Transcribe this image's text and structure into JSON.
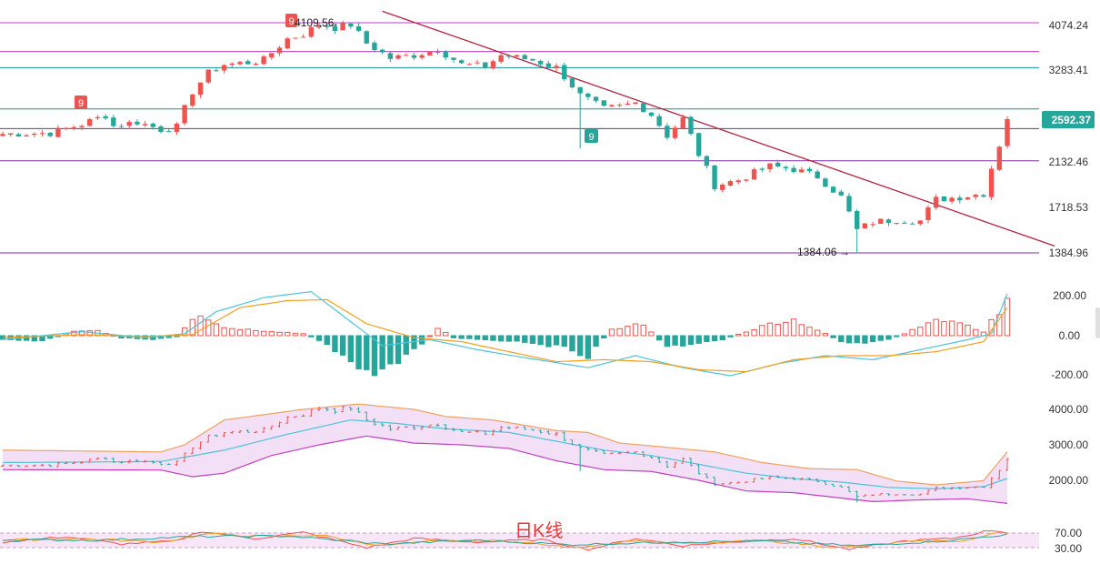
{
  "title": "日K线",
  "colors": {
    "up": "#ef5350",
    "down": "#26a69a",
    "trendline": "#b2233e",
    "hline_magenta": "#c23cc8",
    "hline_purple": "#7b2d9b",
    "hline_teal": "#1e8f9a",
    "macd_line": "#4fc3d9",
    "signal_line": "#f0a020",
    "boll_upper": "#f0a060",
    "boll_mid": "#4fc3d9",
    "boll_lower": "#c040c0",
    "boll_fill": "#f3e0f6",
    "price_tag_bg": "#26a69a",
    "grid": "#e6e6e6",
    "axis_text": "#333333"
  },
  "price_axis": {
    "ticks": [
      "4074.24",
      "3283.41",
      "2132.46",
      "1718.53",
      "1384.96"
    ],
    "current_price": "2592.37"
  },
  "annotations": {
    "high_label": "4109.56",
    "low_label": "1384.06",
    "td_marker_1": "9",
    "td_marker_2": "9",
    "td_marker_3": "9"
  },
  "macd_axis": {
    "ticks": [
      "200.00",
      "0.00",
      "-200.00"
    ]
  },
  "boll_axis": {
    "ticks": [
      "4000.00",
      "3000.00",
      "2000.00"
    ]
  },
  "rsi_axis": {
    "ticks": [
      "70.00",
      "30.00"
    ]
  },
  "chart_data": [
    {
      "type": "candlestick",
      "panel": "price",
      "num_candles": 128,
      "close_path": [
        {
          "i": 0,
          "v": 2420
        },
        {
          "i": 6,
          "v": 2430
        },
        {
          "i": 10,
          "v": 2530
        },
        {
          "i": 13,
          "v": 2640
        },
        {
          "i": 14,
          "v": 2510
        },
        {
          "i": 17,
          "v": 2560
        },
        {
          "i": 20,
          "v": 2470
        },
        {
          "i": 22,
          "v": 2500
        },
        {
          "i": 24,
          "v": 2950
        },
        {
          "i": 26,
          "v": 3220
        },
        {
          "i": 28,
          "v": 3350
        },
        {
          "i": 31,
          "v": 3380
        },
        {
          "i": 33,
          "v": 3420
        },
        {
          "i": 36,
          "v": 3780
        },
        {
          "i": 38,
          "v": 3860
        },
        {
          "i": 40,
          "v": 4050
        },
        {
          "i": 42,
          "v": 3980
        },
        {
          "i": 44,
          "v": 4040
        },
        {
          "i": 46,
          "v": 3700
        },
        {
          "i": 49,
          "v": 3450
        },
        {
          "i": 52,
          "v": 3500
        },
        {
          "i": 55,
          "v": 3600
        },
        {
          "i": 58,
          "v": 3350
        },
        {
          "i": 61,
          "v": 3320
        },
        {
          "i": 63,
          "v": 3500
        },
        {
          "i": 67,
          "v": 3420
        },
        {
          "i": 70,
          "v": 3300
        },
        {
          "i": 73,
          "v": 2900
        },
        {
          "i": 76,
          "v": 2720
        },
        {
          "i": 78,
          "v": 2750
        },
        {
          "i": 80,
          "v": 2800
        },
        {
          "i": 82,
          "v": 2650
        },
        {
          "i": 84,
          "v": 2400
        },
        {
          "i": 86,
          "v": 2600
        },
        {
          "i": 88,
          "v": 2200
        },
        {
          "i": 90,
          "v": 1900
        },
        {
          "i": 93,
          "v": 1950
        },
        {
          "i": 97,
          "v": 2080
        },
        {
          "i": 100,
          "v": 2050
        },
        {
          "i": 103,
          "v": 1980
        },
        {
          "i": 106,
          "v": 1800
        },
        {
          "i": 108,
          "v": 1540
        },
        {
          "i": 110,
          "v": 1600
        },
        {
          "i": 113,
          "v": 1620
        },
        {
          "i": 116,
          "v": 1610
        },
        {
          "i": 118,
          "v": 1780
        },
        {
          "i": 121,
          "v": 1800
        },
        {
          "i": 124,
          "v": 1830
        },
        {
          "i": 126,
          "v": 2300
        },
        {
          "i": 127,
          "v": 2592.37
        }
      ],
      "high": 4109.56,
      "low": 1384.06,
      "trendline": {
        "from_index": 48,
        "from_value": 4300,
        "to_index": 133,
        "to_value": 1430
      },
      "horizontal_levels": [
        {
          "value": 4074.24,
          "color_key": "hline_magenta"
        },
        {
          "value": 3560,
          "color_key": "hline_magenta"
        },
        {
          "value": 3300,
          "color_key": "hline_teal"
        },
        {
          "value": 2720,
          "color_key": "hline_teal"
        },
        {
          "value": 2480,
          "color_key": "hline_purple"
        },
        {
          "value": 2132.46,
          "color_key": "hline_purple"
        },
        {
          "value": 1384.96,
          "color_key": "hline_purple"
        }
      ]
    },
    {
      "type": "bar",
      "panel": "macd",
      "histogram_path": [
        {
          "i": 0,
          "v": -20
        },
        {
          "i": 5,
          "v": -25
        },
        {
          "i": 9,
          "v": 20
        },
        {
          "i": 12,
          "v": 25
        },
        {
          "i": 15,
          "v": -10
        },
        {
          "i": 19,
          "v": -20
        },
        {
          "i": 22,
          "v": -5
        },
        {
          "i": 24,
          "v": 90
        },
        {
          "i": 25,
          "v": 110
        },
        {
          "i": 28,
          "v": 40
        },
        {
          "i": 33,
          "v": 25
        },
        {
          "i": 38,
          "v": 10
        },
        {
          "i": 41,
          "v": -40
        },
        {
          "i": 46,
          "v": -190
        },
        {
          "i": 50,
          "v": -140
        },
        {
          "i": 53,
          "v": -40
        },
        {
          "i": 55,
          "v": 40
        },
        {
          "i": 57,
          "v": -10
        },
        {
          "i": 61,
          "v": -20
        },
        {
          "i": 66,
          "v": -30
        },
        {
          "i": 71,
          "v": -60
        },
        {
          "i": 74,
          "v": -100
        },
        {
          "i": 77,
          "v": 30
        },
        {
          "i": 81,
          "v": 60
        },
        {
          "i": 84,
          "v": -60
        },
        {
          "i": 87,
          "v": -40
        },
        {
          "i": 91,
          "v": -20
        },
        {
          "i": 97,
          "v": 60
        },
        {
          "i": 100,
          "v": 80
        },
        {
          "i": 104,
          "v": 10
        },
        {
          "i": 106,
          "v": -30
        },
        {
          "i": 109,
          "v": -40
        },
        {
          "i": 112,
          "v": -20
        },
        {
          "i": 114,
          "v": 10
        },
        {
          "i": 117,
          "v": 70
        },
        {
          "i": 120,
          "v": 75
        },
        {
          "i": 124,
          "v": 20
        },
        {
          "i": 126,
          "v": 120
        },
        {
          "i": 127,
          "v": 170
        }
      ],
      "macd_path": [
        {
          "i": 0,
          "v": -20
        },
        {
          "i": 10,
          "v": 20
        },
        {
          "i": 18,
          "v": -10
        },
        {
          "i": 23,
          "v": 10
        },
        {
          "i": 27,
          "v": 120
        },
        {
          "i": 33,
          "v": 190
        },
        {
          "i": 39,
          "v": 220
        },
        {
          "i": 43,
          "v": 100
        },
        {
          "i": 48,
          "v": -50
        },
        {
          "i": 54,
          "v": -20
        },
        {
          "i": 60,
          "v": -70
        },
        {
          "i": 66,
          "v": -110
        },
        {
          "i": 74,
          "v": -160
        },
        {
          "i": 80,
          "v": -100
        },
        {
          "i": 86,
          "v": -160
        },
        {
          "i": 92,
          "v": -200
        },
        {
          "i": 98,
          "v": -140
        },
        {
          "i": 104,
          "v": -100
        },
        {
          "i": 110,
          "v": -120
        },
        {
          "i": 116,
          "v": -70
        },
        {
          "i": 122,
          "v": -20
        },
        {
          "i": 125,
          "v": 10
        },
        {
          "i": 127,
          "v": 210
        }
      ],
      "signal_path": [
        {
          "i": 0,
          "v": -10
        },
        {
          "i": 10,
          "v": 5
        },
        {
          "i": 18,
          "v": -5
        },
        {
          "i": 24,
          "v": 5
        },
        {
          "i": 30,
          "v": 140
        },
        {
          "i": 36,
          "v": 175
        },
        {
          "i": 41,
          "v": 180
        },
        {
          "i": 46,
          "v": 60
        },
        {
          "i": 52,
          "v": -10
        },
        {
          "i": 58,
          "v": -30
        },
        {
          "i": 64,
          "v": -80
        },
        {
          "i": 70,
          "v": -130
        },
        {
          "i": 76,
          "v": -120
        },
        {
          "i": 82,
          "v": -130
        },
        {
          "i": 88,
          "v": -170
        },
        {
          "i": 94,
          "v": -180
        },
        {
          "i": 100,
          "v": -120
        },
        {
          "i": 106,
          "v": -100
        },
        {
          "i": 112,
          "v": -100
        },
        {
          "i": 118,
          "v": -80
        },
        {
          "i": 124,
          "v": -30
        },
        {
          "i": 127,
          "v": 140
        }
      ],
      "ylim": [
        -250,
        250
      ]
    },
    {
      "type": "line",
      "panel": "bollinger",
      "upper_path": [
        {
          "i": 0,
          "v": 2850
        },
        {
          "i": 20,
          "v": 2800
        },
        {
          "i": 23,
          "v": 3000
        },
        {
          "i": 28,
          "v": 3700
        },
        {
          "i": 33,
          "v": 3850
        },
        {
          "i": 38,
          "v": 4000
        },
        {
          "i": 45,
          "v": 4150
        },
        {
          "i": 52,
          "v": 4000
        },
        {
          "i": 56,
          "v": 3800
        },
        {
          "i": 62,
          "v": 3700
        },
        {
          "i": 66,
          "v": 3550
        },
        {
          "i": 70,
          "v": 3400
        },
        {
          "i": 74,
          "v": 3350
        },
        {
          "i": 78,
          "v": 3050
        },
        {
          "i": 83,
          "v": 2950
        },
        {
          "i": 90,
          "v": 2800
        },
        {
          "i": 96,
          "v": 2500
        },
        {
          "i": 102,
          "v": 2330
        },
        {
          "i": 108,
          "v": 2300
        },
        {
          "i": 113,
          "v": 1980
        },
        {
          "i": 118,
          "v": 1870
        },
        {
          "i": 124,
          "v": 1990
        },
        {
          "i": 127,
          "v": 2800
        }
      ],
      "mid_path": [
        {
          "i": 0,
          "v": 2500
        },
        {
          "i": 20,
          "v": 2530
        },
        {
          "i": 28,
          "v": 2850
        },
        {
          "i": 36,
          "v": 3300
        },
        {
          "i": 44,
          "v": 3700
        },
        {
          "i": 50,
          "v": 3600
        },
        {
          "i": 56,
          "v": 3450
        },
        {
          "i": 64,
          "v": 3350
        },
        {
          "i": 70,
          "v": 3100
        },
        {
          "i": 76,
          "v": 2850
        },
        {
          "i": 82,
          "v": 2700
        },
        {
          "i": 88,
          "v": 2450
        },
        {
          "i": 94,
          "v": 2200
        },
        {
          "i": 100,
          "v": 2050
        },
        {
          "i": 106,
          "v": 1950
        },
        {
          "i": 112,
          "v": 1800
        },
        {
          "i": 118,
          "v": 1760
        },
        {
          "i": 124,
          "v": 1820
        },
        {
          "i": 127,
          "v": 2050
        }
      ],
      "lower_path": [
        {
          "i": 0,
          "v": 2300
        },
        {
          "i": 20,
          "v": 2290
        },
        {
          "i": 24,
          "v": 2100
        },
        {
          "i": 28,
          "v": 2200
        },
        {
          "i": 34,
          "v": 2700
        },
        {
          "i": 40,
          "v": 3000
        },
        {
          "i": 46,
          "v": 3250
        },
        {
          "i": 52,
          "v": 3050
        },
        {
          "i": 58,
          "v": 3000
        },
        {
          "i": 64,
          "v": 2900
        },
        {
          "i": 70,
          "v": 2550
        },
        {
          "i": 76,
          "v": 2300
        },
        {
          "i": 82,
          "v": 2250
        },
        {
          "i": 88,
          "v": 2000
        },
        {
          "i": 94,
          "v": 1700
        },
        {
          "i": 100,
          "v": 1650
        },
        {
          "i": 106,
          "v": 1500
        },
        {
          "i": 110,
          "v": 1400
        },
        {
          "i": 116,
          "v": 1450
        },
        {
          "i": 122,
          "v": 1480
        },
        {
          "i": 127,
          "v": 1350
        }
      ],
      "ylim": [
        1200,
        4400
      ]
    },
    {
      "type": "line",
      "panel": "rsi",
      "series": [
        {
          "color_key": "up",
          "path": [
            {
              "i": 0,
              "v": 45
            },
            {
              "i": 8,
              "v": 60
            },
            {
              "i": 15,
              "v": 40
            },
            {
              "i": 22,
              "v": 48
            },
            {
              "i": 25,
              "v": 75
            },
            {
              "i": 32,
              "v": 55
            },
            {
              "i": 38,
              "v": 72
            },
            {
              "i": 46,
              "v": 30
            },
            {
              "i": 52,
              "v": 55
            },
            {
              "i": 60,
              "v": 45
            },
            {
              "i": 68,
              "v": 52
            },
            {
              "i": 74,
              "v": 25
            },
            {
              "i": 80,
              "v": 55
            },
            {
              "i": 86,
              "v": 35
            },
            {
              "i": 92,
              "v": 45
            },
            {
              "i": 100,
              "v": 55
            },
            {
              "i": 107,
              "v": 25
            },
            {
              "i": 114,
              "v": 48
            },
            {
              "i": 120,
              "v": 55
            },
            {
              "i": 125,
              "v": 78
            },
            {
              "i": 127,
              "v": 72
            }
          ]
        },
        {
          "color_key": "signal_line",
          "path": [
            {
              "i": 0,
              "v": 50
            },
            {
              "i": 10,
              "v": 55
            },
            {
              "i": 20,
              "v": 45
            },
            {
              "i": 26,
              "v": 68
            },
            {
              "i": 34,
              "v": 60
            },
            {
              "i": 40,
              "v": 65
            },
            {
              "i": 48,
              "v": 35
            },
            {
              "i": 56,
              "v": 50
            },
            {
              "i": 64,
              "v": 48
            },
            {
              "i": 72,
              "v": 30
            },
            {
              "i": 80,
              "v": 50
            },
            {
              "i": 88,
              "v": 40
            },
            {
              "i": 96,
              "v": 50
            },
            {
              "i": 106,
              "v": 30
            },
            {
              "i": 114,
              "v": 45
            },
            {
              "i": 122,
              "v": 50
            },
            {
              "i": 126,
              "v": 72
            },
            {
              "i": 127,
              "v": 70
            }
          ]
        },
        {
          "color_key": "down",
          "path": [
            {
              "i": 0,
              "v": 52
            },
            {
              "i": 12,
              "v": 50
            },
            {
              "i": 24,
              "v": 60
            },
            {
              "i": 36,
              "v": 62
            },
            {
              "i": 48,
              "v": 40
            },
            {
              "i": 60,
              "v": 50
            },
            {
              "i": 72,
              "v": 38
            },
            {
              "i": 84,
              "v": 45
            },
            {
              "i": 96,
              "v": 48
            },
            {
              "i": 108,
              "v": 35
            },
            {
              "i": 120,
              "v": 50
            },
            {
              "i": 127,
              "v": 66
            }
          ]
        }
      ],
      "ylim": [
        20,
        90
      ]
    }
  ]
}
